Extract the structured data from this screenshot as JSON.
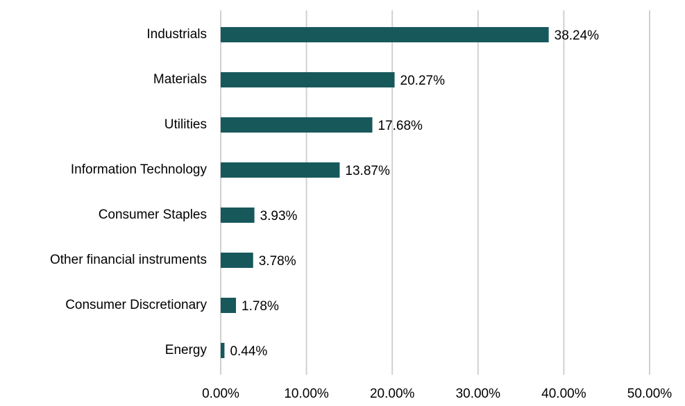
{
  "chart_data": {
    "type": "hbar",
    "categories": [
      "Industrials",
      "Materials",
      "Utilities",
      "Information Technology",
      "Consumer Staples",
      "Other financial instruments",
      "Consumer Discretionary",
      "Energy"
    ],
    "values": [
      38.24,
      20.27,
      17.68,
      13.87,
      3.93,
      3.78,
      1.78,
      0.44
    ],
    "value_labels": [
      "38.24%",
      "20.27%",
      "17.68%",
      "13.87%",
      "3.93%",
      "3.78%",
      "1.78%",
      "0.44%"
    ],
    "color": "#17585b",
    "xlim": [
      0,
      50
    ],
    "xticks": [
      {
        "value": 0,
        "label": "0.00%"
      },
      {
        "value": 10,
        "label": "10.00%"
      },
      {
        "value": 20,
        "label": "20.00%"
      },
      {
        "value": 30,
        "label": "30.00%"
      },
      {
        "value": 40,
        "label": "40.00%"
      },
      {
        "value": 50,
        "label": "50.00%"
      }
    ],
    "grid": true
  }
}
